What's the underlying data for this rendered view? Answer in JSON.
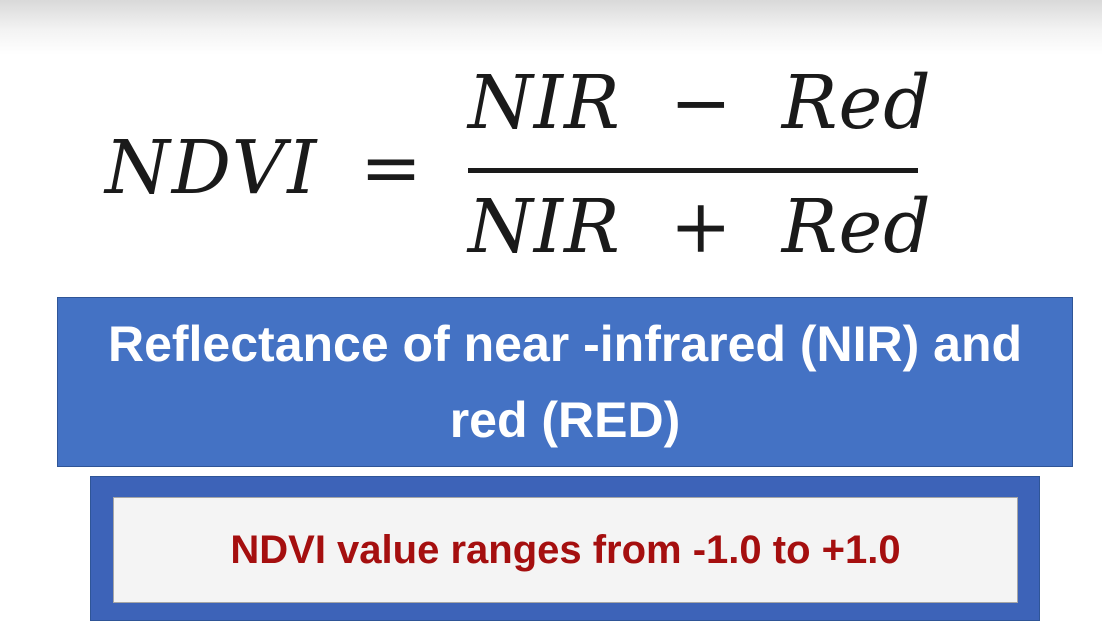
{
  "formula": {
    "lhs": "NDVI",
    "equals": "=",
    "numerator": "NIR  −  Red",
    "denominator": "NIR  +  Red"
  },
  "definition_box": {
    "text": "Reflectance of near -infrared (NIR) and red (RED)"
  },
  "range_box": {
    "text": "NDVI value ranges from -1.0 to +1.0"
  },
  "colors": {
    "blue_box": "#4472c4",
    "frame_box": "#3d63b8",
    "range_text": "#a50f0f"
  }
}
